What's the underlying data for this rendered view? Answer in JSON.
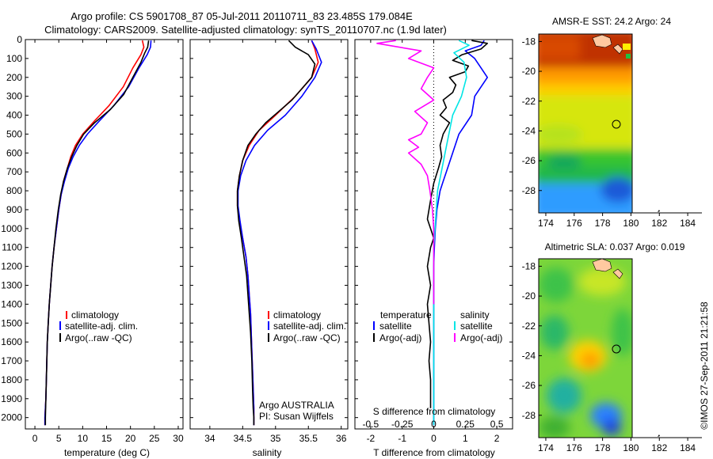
{
  "header": {
    "line1": "Argo profile: CS 5901708_87 05-Jul-2011 20110711_83 23.485S 179.084E",
    "line2": "Climatology: CARS2009. Satellite-adjusted climatology: synTS_20110707.nc (1.9d later)"
  },
  "colors": {
    "climatology": "#ff0000",
    "satellite": "#0000ff",
    "argo": "#000000",
    "salinity_sat": "#00e5e5",
    "salinity_argo": "#ff00ff"
  },
  "chart_data": [
    {
      "type": "line",
      "name": "temperature",
      "xlabel": "temperature (deg C)",
      "xlim": [
        -2,
        31
      ],
      "ylim": [
        0,
        2060
      ],
      "xticks": [
        0,
        5,
        10,
        15,
        20,
        25,
        30
      ],
      "xtick_labels": [
        "0",
        "5",
        "10",
        "15",
        "20",
        "25",
        "30"
      ],
      "yticks": [
        0,
        100,
        200,
        300,
        400,
        500,
        600,
        700,
        800,
        900,
        1000,
        1100,
        1200,
        1300,
        1400,
        1500,
        1600,
        1700,
        1800,
        1900,
        2000
      ],
      "ytick_labels": [
        "0",
        "100",
        "200",
        "300",
        "400",
        "500",
        "600",
        "700",
        "800",
        "900",
        "1000",
        "1100",
        "1200",
        "1300",
        "1400",
        "1500",
        "1600",
        "1700",
        "1800",
        "1900",
        "2000"
      ],
      "legend": [
        "climatology",
        "satellite-adj. clim.",
        "Argo(..raw -QC)"
      ],
      "series": [
        {
          "name": "climatology",
          "color": "#ff0000",
          "x": [
            22.5,
            22.8,
            22.2,
            20.5,
            18.5,
            15.5,
            12.5,
            10,
            8.5,
            7.5,
            6.8,
            6,
            5.5,
            5,
            4.5,
            4,
            3.6,
            3.3,
            3,
            2.8,
            2.6,
            2.5,
            2.4,
            2.3,
            2.2,
            2.1,
            2.1
          ],
          "depth": [
            5,
            40,
            80,
            150,
            250,
            350,
            430,
            500,
            560,
            620,
            680,
            750,
            820,
            900,
            1000,
            1100,
            1200,
            1300,
            1400,
            1500,
            1600,
            1700,
            1800,
            1900,
            1950,
            2000,
            2040
          ]
        },
        {
          "name": "satellite-adj. clim.",
          "color": "#0000ff",
          "x": [
            24.3,
            24.2,
            23.5,
            21.8,
            19.6,
            16.5,
            13.5,
            11,
            9.3,
            8,
            7,
            6.2,
            5.5,
            5,
            4.5,
            4,
            3.6,
            3.3,
            3,
            2.8,
            2.6,
            2.5,
            2.4,
            2.3,
            2.2,
            2.1,
            2.1
          ],
          "depth": [
            5,
            40,
            80,
            150,
            250,
            350,
            430,
            500,
            560,
            620,
            680,
            750,
            820,
            900,
            1000,
            1100,
            1200,
            1300,
            1400,
            1500,
            1600,
            1700,
            1800,
            1900,
            1950,
            2000,
            2040
          ]
        },
        {
          "name": "Argo",
          "color": "#000000",
          "x": [
            23.8,
            23.6,
            23,
            22.2,
            20.5,
            18.6,
            15.8,
            12.5,
            10.2,
            8.8,
            7.7,
            6.8,
            6,
            5.4,
            4.9,
            4.4,
            4,
            3.6,
            3.3,
            3,
            2.8,
            2.6,
            2.5,
            2.4,
            2.3,
            2.2,
            2.2
          ],
          "depth": [
            5,
            40,
            70,
            120,
            200,
            290,
            370,
            440,
            500,
            560,
            620,
            680,
            750,
            820,
            900,
            1000,
            1100,
            1200,
            1300,
            1400,
            1500,
            1600,
            1700,
            1800,
            1900,
            2000,
            2040
          ]
        }
      ]
    },
    {
      "type": "line",
      "name": "salinity",
      "xlabel": "salinity",
      "xlim": [
        33.7,
        36.1
      ],
      "ylim": [
        0,
        2060
      ],
      "xticks": [
        34,
        34.5,
        35,
        35.5,
        36
      ],
      "xtick_labels": [
        "34",
        "34.5",
        "35",
        "35.5",
        "36"
      ],
      "legend": [
        "climatology",
        "satellite-adj. clim.",
        "Argo(..raw -QC)"
      ],
      "annotation": [
        "Argo AUSTRALIA",
        "PI: Susan Wijffels"
      ],
      "series": [
        {
          "name": "climatology",
          "color": "#ff0000",
          "x": [
            35.55,
            35.6,
            35.65,
            35.55,
            35.3,
            35.0,
            34.75,
            34.6,
            34.5,
            34.45,
            34.42,
            34.42,
            34.45,
            34.5,
            34.55,
            34.58,
            34.6,
            34.62,
            34.63,
            34.64,
            34.65,
            34.66,
            34.67,
            34.67
          ],
          "depth": [
            5,
            50,
            120,
            200,
            300,
            400,
            480,
            560,
            640,
            720,
            800,
            880,
            960,
            1050,
            1150,
            1250,
            1350,
            1450,
            1550,
            1650,
            1750,
            1850,
            1950,
            2040
          ]
        },
        {
          "name": "satellite-adj. clim.",
          "color": "#0000ff",
          "x": [
            35.55,
            35.62,
            35.7,
            35.6,
            35.4,
            35.15,
            34.88,
            34.68,
            34.55,
            34.47,
            34.43,
            34.43,
            34.46,
            34.5,
            34.55,
            34.58,
            34.6,
            34.62,
            34.63,
            34.64,
            34.65,
            34.66,
            34.67,
            34.67
          ],
          "depth": [
            5,
            50,
            120,
            200,
            300,
            400,
            480,
            560,
            640,
            720,
            800,
            880,
            960,
            1050,
            1150,
            1250,
            1350,
            1450,
            1550,
            1650,
            1750,
            1850,
            1950,
            2040
          ]
        },
        {
          "name": "Argo",
          "color": "#000000",
          "x": [
            35.2,
            35.3,
            35.5,
            35.6,
            35.55,
            35.4,
            35.25,
            35.05,
            34.85,
            34.7,
            34.58,
            34.5,
            34.45,
            34.42,
            34.42,
            34.44,
            34.48,
            34.52,
            34.56,
            34.59,
            34.62,
            34.64,
            34.65,
            34.66,
            34.67,
            34.67
          ],
          "depth": [
            5,
            40,
            80,
            130,
            200,
            260,
            320,
            380,
            440,
            500,
            560,
            640,
            720,
            800,
            880,
            960,
            1050,
            1150,
            1250,
            1400,
            1550,
            1700,
            1850,
            1950,
            2000,
            2040
          ]
        }
      ]
    },
    {
      "type": "line",
      "name": "differences",
      "xlim": [
        -2.5,
        2.5
      ],
      "ylim": [
        0,
        2060
      ],
      "t_xticks": [
        -2,
        -1,
        0,
        1,
        2
      ],
      "t_xtick_labels": [
        "-2",
        "-1",
        "0",
        "1",
        "2"
      ],
      "t_xlabel": "T difference from climatology",
      "s_xticks": [
        -0.5,
        -0.25,
        0,
        0.25,
        0.5
      ],
      "s_xtick_labels": [
        "-0.5",
        "-0.25",
        "0",
        "0.25",
        "0.5"
      ],
      "s_xlabel": "S difference from climatology",
      "legend_t_title": "temperature",
      "legend_s_title": "salinity",
      "legend_t": [
        "satellite",
        "Argo(-adj)"
      ],
      "legend_s": [
        "satellite",
        "Argo(-adj)"
      ],
      "series": [
        {
          "name": "T satellite",
          "color": "#0000ff",
          "x": [
            1.6,
            1.5,
            1.0,
            1.3,
            1.5,
            1.7,
            1.3,
            1.2,
            0.8,
            0.6,
            0.5,
            0.4,
            0.3,
            0.2,
            0.15,
            0.1,
            0.05,
            0.02,
            0.0,
            0.0,
            0.0,
            0.0,
            0.0,
            0.0,
            0.0,
            0.0
          ],
          "depth": [
            5,
            30,
            60,
            100,
            150,
            200,
            300,
            400,
            500,
            600,
            650,
            700,
            750,
            800,
            850,
            900,
            1000,
            1100,
            1200,
            1400,
            1600,
            1700,
            1800,
            1900,
            2000,
            2040
          ]
        },
        {
          "name": "T Argo",
          "color": "#000000",
          "x": [
            1.2,
            1.7,
            1.5,
            0.9,
            0.6,
            1.1,
            1.0,
            0.5,
            0.7,
            0.6,
            0.3,
            0.4,
            0.2,
            0.5,
            0.3,
            0.2,
            0.25,
            0.15,
            0.0,
            -0.1,
            -0.2,
            0.0,
            -0.1,
            -0.15,
            -0.2,
            -0.1,
            -0.2,
            -0.15,
            -0.1,
            -0.15,
            -0.1,
            -0.1
          ],
          "depth": [
            5,
            20,
            50,
            80,
            110,
            140,
            170,
            200,
            240,
            280,
            320,
            360,
            400,
            440,
            500,
            560,
            620,
            680,
            760,
            850,
            950,
            1050,
            1100,
            1150,
            1200,
            1300,
            1400,
            1500,
            1600,
            1700,
            1800,
            1950
          ]
        },
        {
          "name": "S satellite",
          "color": "#00e5e5",
          "x": [
            0.2,
            0.28,
            0.16,
            0.24,
            0.26,
            0.22,
            0.15,
            0.12,
            0.09,
            0.06,
            0.03,
            0.02,
            0.01,
            0.0,
            0.0,
            0.0,
            0.0,
            0.0,
            0.0,
            0.0,
            0.0,
            0.0
          ],
          "depth": [
            5,
            30,
            70,
            120,
            200,
            300,
            400,
            500,
            600,
            700,
            800,
            900,
            1000,
            1100,
            1200,
            1400,
            1600,
            1700,
            1800,
            1900,
            2000,
            2040
          ]
        },
        {
          "name": "S Argo",
          "color": "#ff00ff",
          "x": [
            -0.3,
            -0.45,
            -0.1,
            -0.2,
            0.0,
            -0.05,
            -0.1,
            0.0,
            -0.15,
            -0.05,
            -0.1,
            -0.2,
            -0.12,
            -0.2,
            -0.1,
            -0.05,
            -0.03,
            -0.01,
            0.0,
            0.0,
            0.0
          ],
          "depth": [
            5,
            20,
            60,
            100,
            150,
            200,
            260,
            320,
            380,
            440,
            500,
            530,
            570,
            600,
            660,
            720,
            800,
            900,
            1000,
            1200,
            1400
          ]
        }
      ]
    },
    {
      "type": "heatmap",
      "name": "sst_map",
      "title": "AMSR-E SST: 24.2 Argo: 24",
      "xlim": [
        173.5,
        185
      ],
      "ylim": [
        -29.5,
        -17.5
      ],
      "xticks": [
        174,
        176,
        178,
        180,
        182,
        184
      ],
      "xtick_labels": [
        "174",
        "176",
        "178",
        "180",
        "182",
        "184"
      ],
      "yticks": [
        -18,
        -20,
        -22,
        -24,
        -26,
        -28
      ],
      "ytick_labels": [
        "-18",
        "-20",
        "-22",
        "-24",
        "-26",
        "-28"
      ],
      "float_position": [
        179.084,
        -23.485
      ]
    },
    {
      "type": "heatmap",
      "name": "sla_map",
      "title": "Altimetric SLA: 0.037 Argo: 0.019",
      "xlim": [
        173.5,
        185
      ],
      "ylim": [
        -29.5,
        -17.5
      ],
      "xticks": [
        174,
        176,
        178,
        180,
        182,
        184
      ],
      "xtick_labels": [
        "174",
        "176",
        "178",
        "180",
        "182",
        "184"
      ],
      "yticks": [
        -18,
        -20,
        -22,
        -24,
        -26,
        -28
      ],
      "ytick_labels": [
        "-18",
        "-20",
        "-22",
        "-24",
        "-26",
        "-28"
      ],
      "float_position": [
        179.084,
        -23.485
      ]
    }
  ],
  "footer": {
    "credit": "©IMOS 27-Sep-2011 21:21:58"
  }
}
